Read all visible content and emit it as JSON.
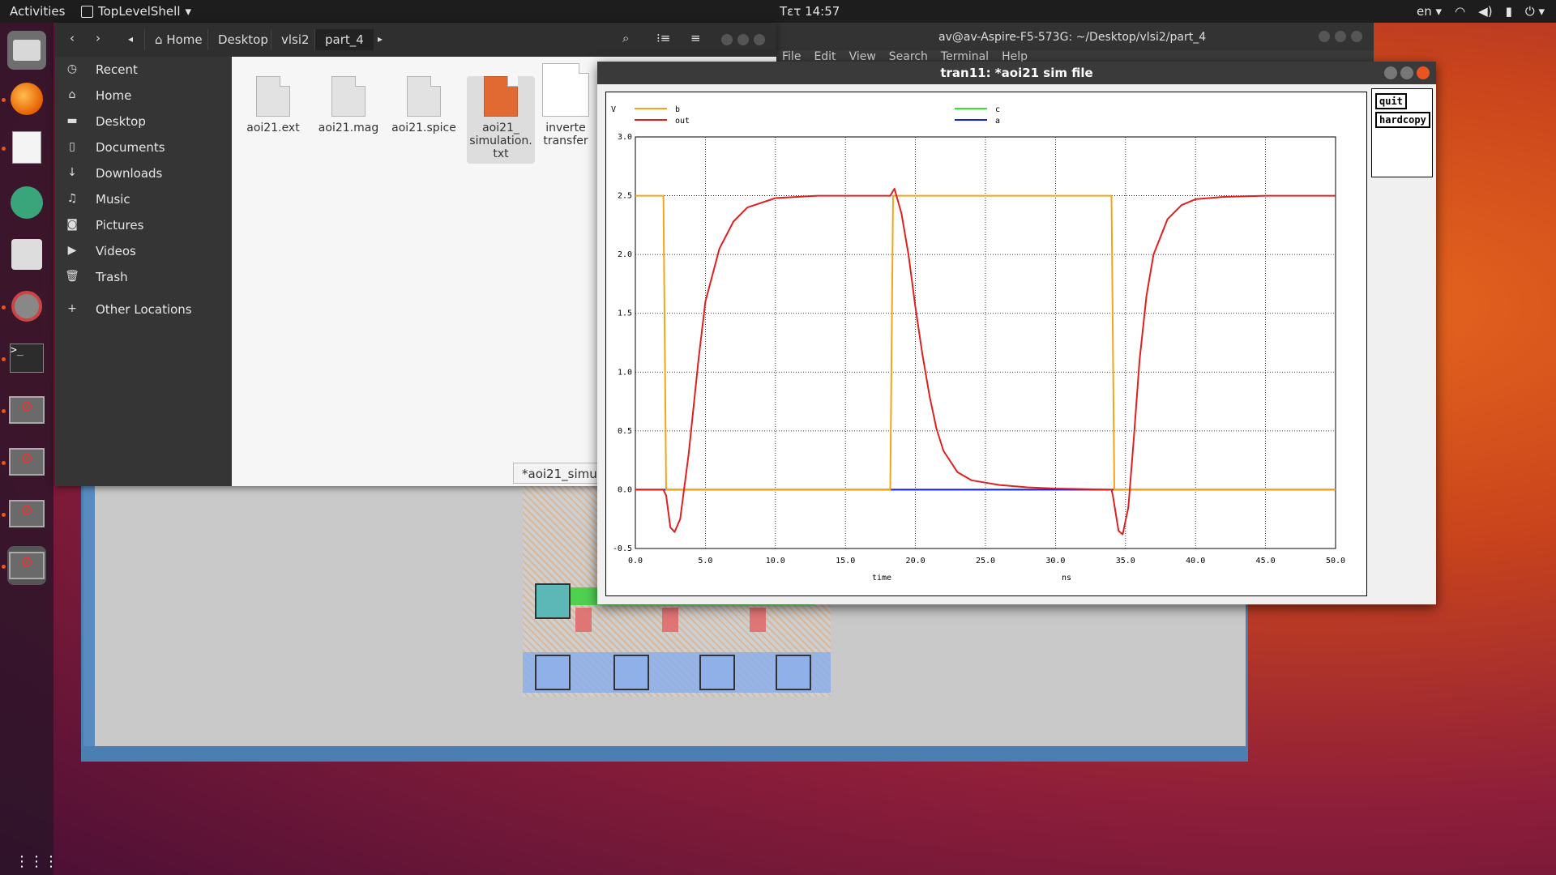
{
  "topbar": {
    "activities": "Activities",
    "app_menu": "TopLevelShell",
    "clock": "Τετ 14:57",
    "lang": "en"
  },
  "dock": {
    "apps": [
      "files-app",
      "firefox-app",
      "text-editor-app",
      "atom-app",
      "mixer-app",
      "settings-tools-app",
      "terminal-app",
      "blocked-app",
      "blocked-app",
      "blocked-app",
      "blocked-app"
    ]
  },
  "terminal": {
    "title": "av@av-Aspire-F5-573G: ~/Desktop/vlsi2/part_4",
    "menu": [
      "File",
      "Edit",
      "View",
      "Search",
      "Terminal",
      "Help"
    ]
  },
  "files": {
    "breadcrumb": [
      "Home",
      "Desktop",
      "vlsi2",
      "part_4"
    ],
    "sidebar": [
      {
        "icon": "clock-icon",
        "label": "Recent"
      },
      {
        "icon": "home-icon",
        "label": "Home"
      },
      {
        "icon": "folder-icon",
        "label": "Desktop"
      },
      {
        "icon": "document-icon",
        "label": "Documents"
      },
      {
        "icon": "download-icon",
        "label": "Downloads"
      },
      {
        "icon": "music-icon",
        "label": "Music"
      },
      {
        "icon": "camera-icon",
        "label": "Pictures"
      },
      {
        "icon": "video-icon",
        "label": "Videos"
      },
      {
        "icon": "trash-icon",
        "label": "Trash"
      },
      {
        "icon": "plus-icon",
        "label": "Other Locations"
      }
    ],
    "items": [
      {
        "name": "aoi21.ext"
      },
      {
        "name": "aoi21.mag"
      },
      {
        "name": "aoi21.spice"
      },
      {
        "name": "aoi21_ simulation. txt"
      },
      {
        "name": "inverte transfer"
      }
    ],
    "editor_tab": "*aoi21_simu"
  },
  "sim": {
    "title": "tran11: *aoi21 sim file",
    "buttons": {
      "quit": "quit",
      "hardcopy": "hardcopy"
    }
  },
  "chart_data": {
    "type": "line",
    "ylabel": "V",
    "xlabel": "time",
    "xunit": "ns",
    "xlim": [
      0,
      50
    ],
    "ylim": [
      -0.5,
      3.0
    ],
    "xticks": [
      "0.0",
      "5.0",
      "10.0",
      "15.0",
      "20.0",
      "25.0",
      "30.0",
      "35.0",
      "40.0",
      "45.0",
      "50.0"
    ],
    "yticks": [
      "-0.5",
      "0.0",
      "0.5",
      "1.0",
      "1.5",
      "2.0",
      "2.5",
      "3.0"
    ],
    "grid": true,
    "legend": "top",
    "series": [
      {
        "name": "b",
        "color": "#f4a418",
        "x": [
          0,
          2,
          2.2,
          18.2,
          18.4,
          34.0,
          34.2,
          50
        ],
        "y": [
          2.5,
          2.5,
          0,
          0,
          2.5,
          2.5,
          0,
          0
        ]
      },
      {
        "name": "out",
        "color": "#e02020",
        "x": [
          0,
          2.0,
          2.2,
          2.5,
          2.8,
          3.2,
          3.8,
          4.5,
          5.0,
          6.0,
          7.0,
          8.0,
          10.0,
          13.0,
          18.2,
          18.5,
          19.0,
          19.5,
          20.0,
          20.5,
          21.0,
          21.5,
          22.0,
          23.0,
          24.0,
          26.0,
          28.0,
          30.0,
          34.0,
          34.1,
          34.5,
          34.8,
          35.2,
          35.6,
          36.0,
          36.5,
          37.0,
          38.0,
          39.0,
          40.0,
          42.0,
          45.0,
          50.0
        ],
        "y": [
          0,
          0,
          -0.05,
          -0.32,
          -0.36,
          -0.25,
          0.3,
          1.1,
          1.6,
          2.05,
          2.28,
          2.4,
          2.48,
          2.5,
          2.5,
          2.56,
          2.35,
          2.0,
          1.55,
          1.15,
          0.8,
          0.52,
          0.33,
          0.15,
          0.08,
          0.04,
          0.02,
          0.01,
          0.0,
          -0.05,
          -0.35,
          -0.38,
          -0.15,
          0.45,
          1.1,
          1.65,
          2.0,
          2.3,
          2.42,
          2.47,
          2.49,
          2.5,
          2.5
        ]
      },
      {
        "name": "c",
        "color": "#2ee82e",
        "x": [
          0,
          50
        ],
        "y": [
          0,
          0
        ]
      },
      {
        "name": "a",
        "color": "#1424d8",
        "x": [
          0,
          50
        ],
        "y": [
          0,
          0
        ]
      }
    ]
  }
}
